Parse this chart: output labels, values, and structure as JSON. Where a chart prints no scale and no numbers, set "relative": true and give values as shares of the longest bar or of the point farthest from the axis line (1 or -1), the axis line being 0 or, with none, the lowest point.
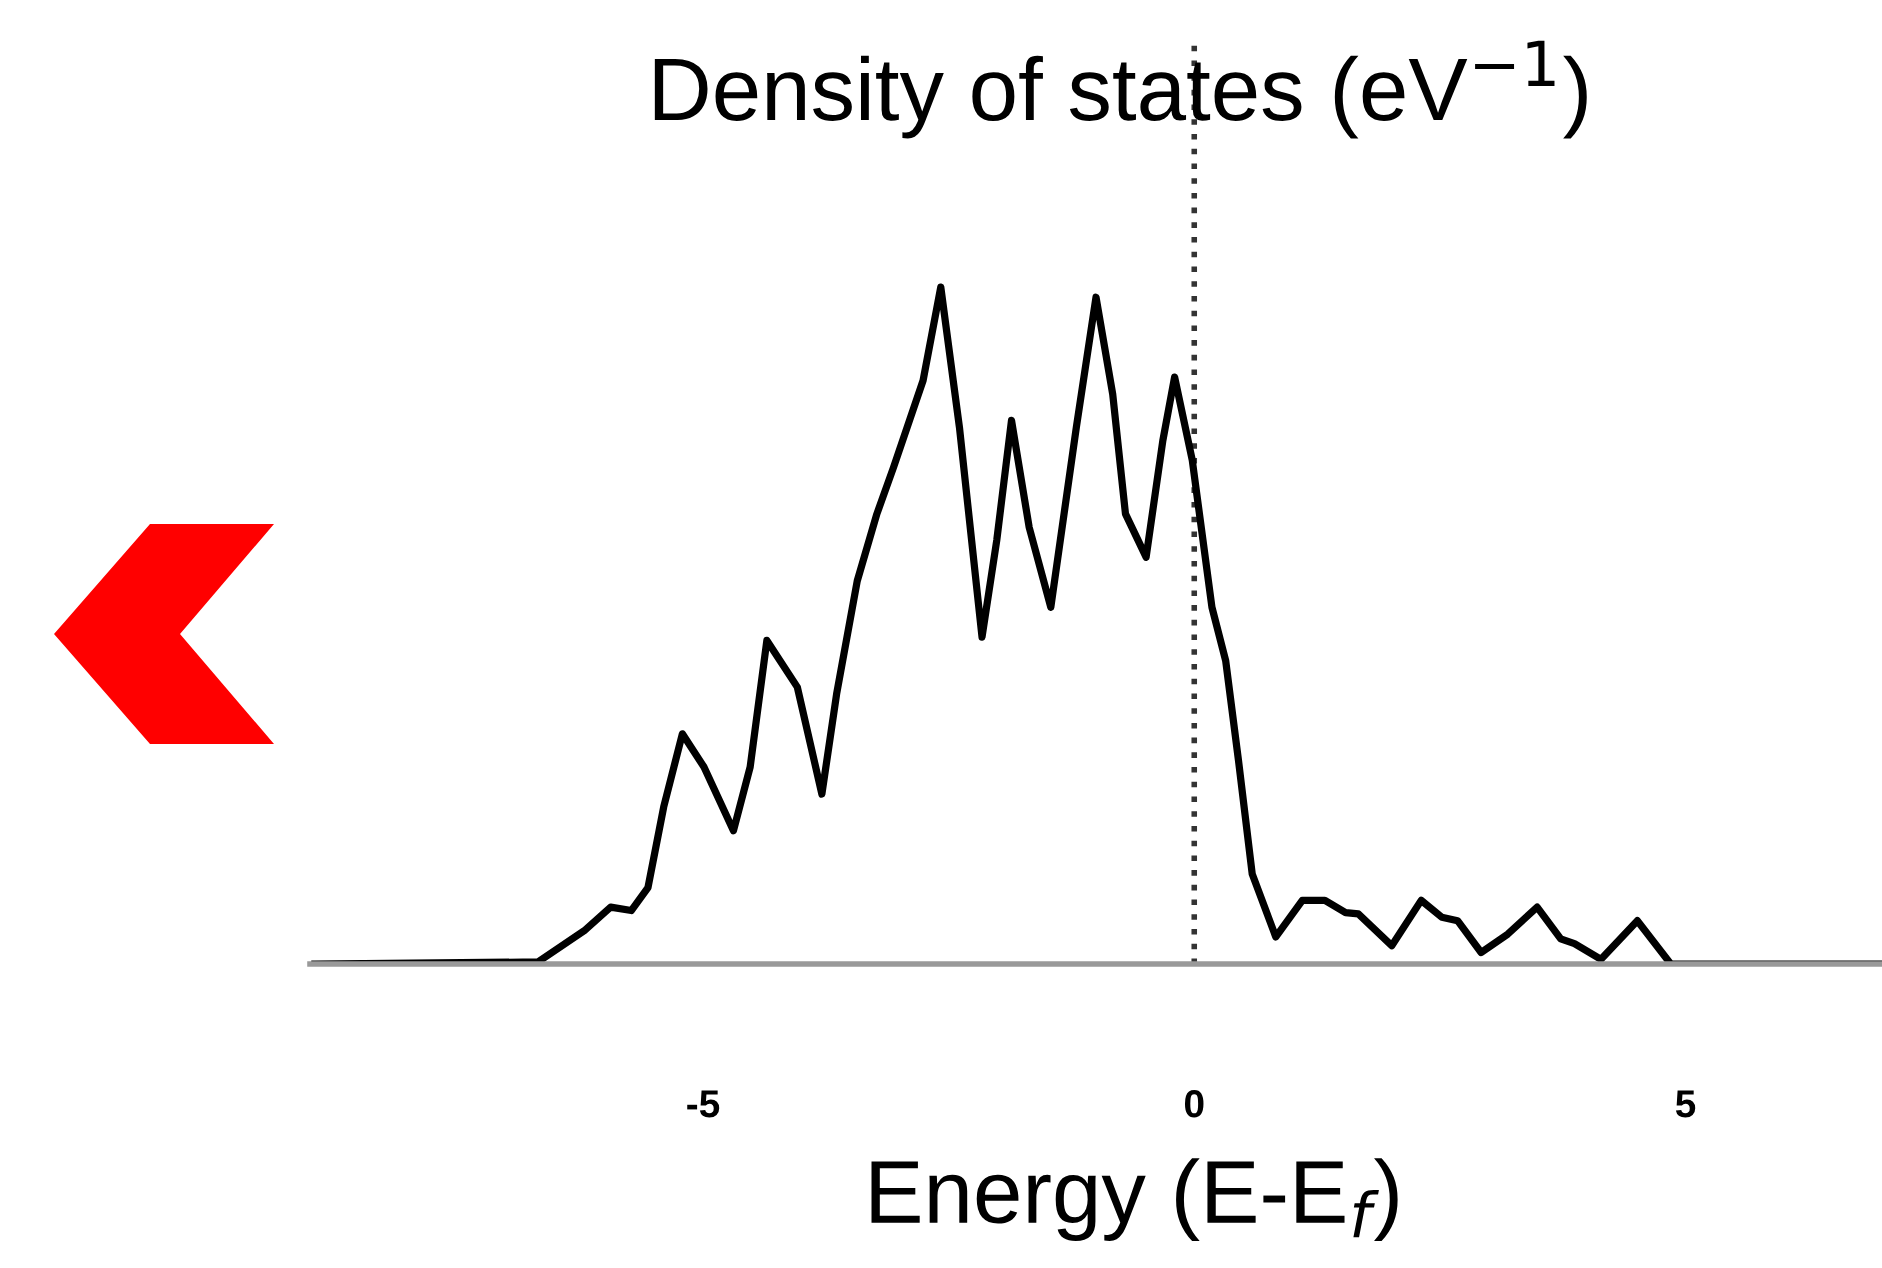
{
  "chart_data": {
    "type": "line",
    "title": "Density of states (eV$^{−1}$)",
    "xlabel": "Energy (E-E$_{f}$)",
    "relative": true,
    "xlim": [
      -9,
      7
    ],
    "xticks": [
      -5,
      0,
      5
    ],
    "grid": false,
    "legend": false,
    "marker": "none",
    "line_style": "solid",
    "x": [
      -8.95,
      -6.68,
      -6.21,
      -5.94,
      -5.73,
      -5.56,
      -5.4,
      -5.21,
      -4.99,
      -4.69,
      -4.52,
      -4.35,
      -4.04,
      -3.79,
      -3.64,
      -3.43,
      -3.23,
      -3.06,
      -2.76,
      -2.58,
      -2.39,
      -2.16,
      -2.01,
      -1.86,
      -1.68,
      -1.46,
      -1.2,
      -1.0,
      -0.83,
      -0.7,
      -0.49,
      -0.32,
      -0.2,
      -0.02,
      0.18,
      0.32,
      0.45,
      0.59,
      0.83,
      1.1,
      1.33,
      1.54,
      1.67,
      2.01,
      2.31,
      2.52,
      2.68,
      2.92,
      3.19,
      3.49,
      3.73,
      3.87,
      4.14,
      4.51,
      4.85,
      6.98
    ],
    "series": [
      {
        "color": "#000000",
        "values": [
          0,
          0.003,
          0.049,
          0.084,
          0.079,
          0.113,
          0.232,
          0.34,
          0.291,
          0.197,
          0.291,
          0.478,
          0.409,
          0.251,
          0.399,
          0.566,
          0.665,
          0.734,
          0.862,
          1,
          0.793,
          0.483,
          0.626,
          0.803,
          0.645,
          0.527,
          0.793,
          0.985,
          0.842,
          0.665,
          0.601,
          0.773,
          0.867,
          0.744,
          0.527,
          0.448,
          0.301,
          0.133,
          0.04,
          0.094,
          0.094,
          0.076,
          0.074,
          0.027,
          0.094,
          0.069,
          0.064,
          0.017,
          0.044,
          0.084,
          0.037,
          0.03,
          0.007,
          0.064,
          0,
          0
        ]
      }
    ],
    "ref_lines": [
      {
        "axis": "x",
        "value": 0,
        "color": "#333333",
        "line_style": "dotted"
      }
    ]
  }
}
